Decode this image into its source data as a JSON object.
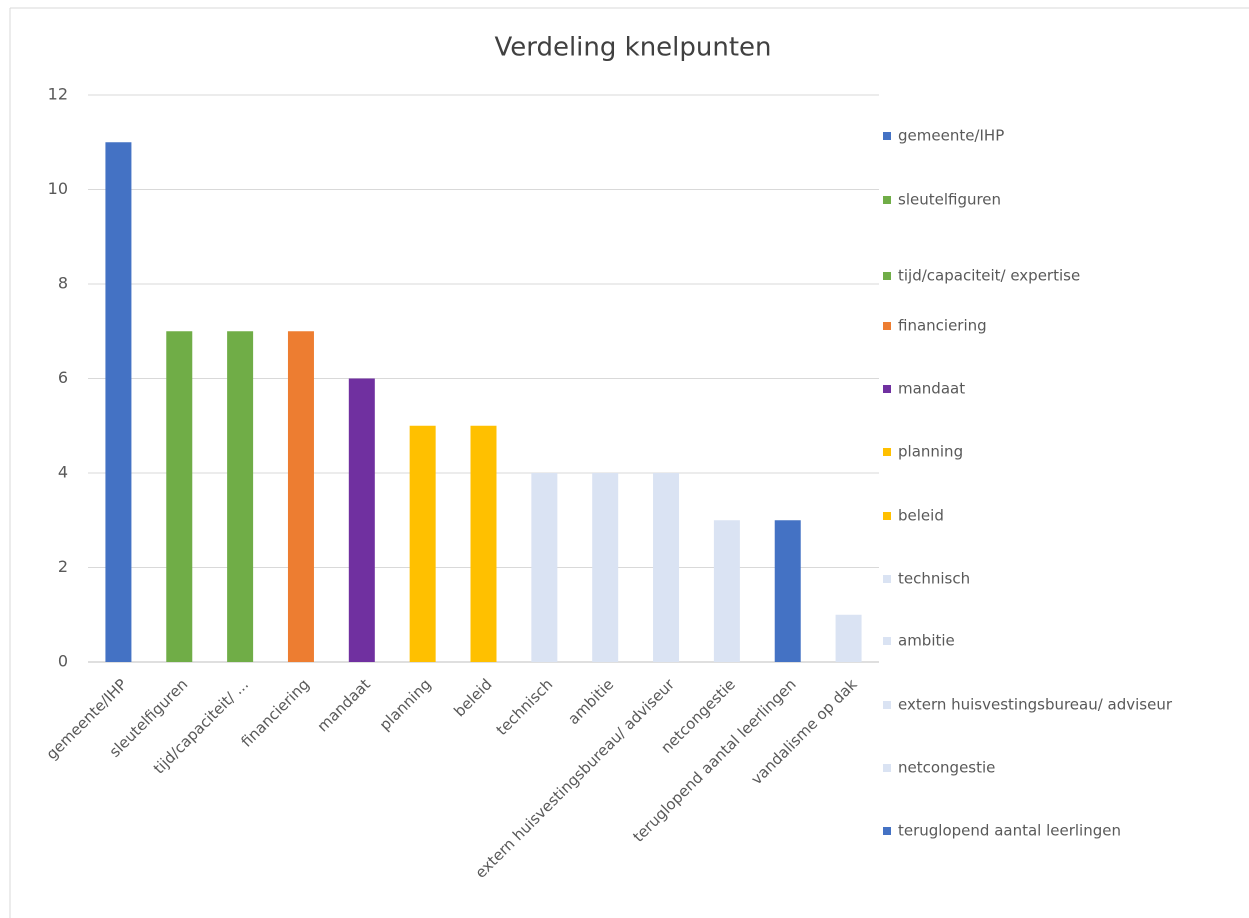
{
  "chart_data": {
    "type": "bar",
    "title": "Verdeling knelpunten",
    "categories": [
      "gemeente/IHP",
      "sleutelfiguren",
      "tijd/capaciteit/ ...",
      "financiering",
      "mandaat",
      "planning",
      "beleid",
      "technisch",
      "ambitie",
      "extern huisvestingsbureau/ adviseur",
      "netcongestie",
      "teruglopend aantal leerlingen",
      "vandalisme op dak"
    ],
    "values": [
      11,
      7,
      7,
      7,
      6,
      5,
      5,
      4,
      4,
      4,
      3,
      3,
      1
    ],
    "colors": [
      "#4472c4",
      "#70ad47",
      "#70ad47",
      "#ed7d31",
      "#7030a0",
      "#ffc000",
      "#ffc000",
      "#dae3f3",
      "#dae3f3",
      "#dae3f3",
      "#dae3f3",
      "#4472c4",
      "#dae3f3"
    ],
    "ylim": [
      0,
      12
    ],
    "yticks": [
      0,
      2,
      4,
      6,
      8,
      10,
      12
    ],
    "grid": true,
    "legend": [
      {
        "name": "gemeente/IHP",
        "color": "#4472c4"
      },
      {
        "name": "sleutelfiguren",
        "color": "#70ad47"
      },
      {
        "name": "tijd/capaciteit/ expertise",
        "color": "#70ad47"
      },
      {
        "name": "financiering",
        "color": "#ed7d31"
      },
      {
        "name": "mandaat",
        "color": "#7030a0"
      },
      {
        "name": "planning",
        "color": "#ffc000"
      },
      {
        "name": "beleid",
        "color": "#ffc000"
      },
      {
        "name": "technisch",
        "color": "#dae3f3"
      },
      {
        "name": "ambitie",
        "color": "#dae3f3"
      },
      {
        "name": "extern huisvestingsbureau/ adviseur",
        "color": "#dae3f3"
      },
      {
        "name": "netcongestie",
        "color": "#dae3f3"
      },
      {
        "name": "teruglopend aantal leerlingen",
        "color": "#4472c4"
      }
    ],
    "legend_position": "right"
  }
}
